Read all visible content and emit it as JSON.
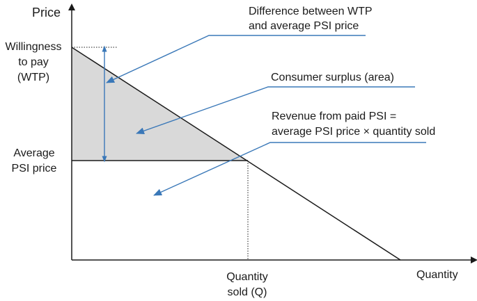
{
  "axes": {
    "y_label": "Price",
    "x_label": "Quantity"
  },
  "labels": {
    "wtp_line1": "Willingness",
    "wtp_line2": "to pay",
    "wtp_line3": "(WTP)",
    "avg_line1": "Average",
    "avg_line2": "PSI price",
    "qty_line1": "Quantity",
    "qty_line2": "sold (Q)"
  },
  "annotations": {
    "difference_line1": "Difference between WTP",
    "difference_line2": "and average PSI price",
    "surplus": "Consumer surplus (area)",
    "revenue_line1": "Revenue from paid PSI =",
    "revenue_line2": "average PSI price × quantity sold"
  },
  "colors": {
    "surplus_fill": "#d9d9d9",
    "annotation": "#3a78b8",
    "line": "#1a1a1a"
  }
}
